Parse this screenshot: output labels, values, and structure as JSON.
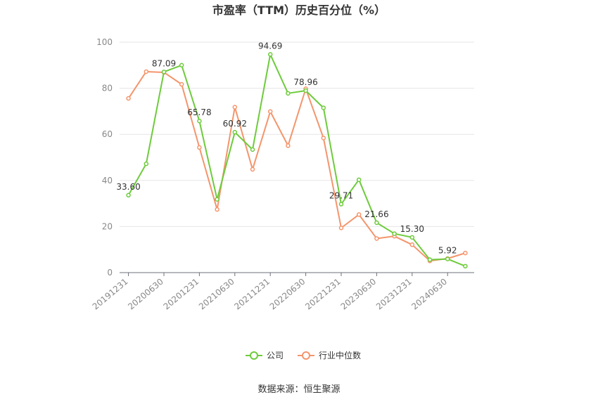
{
  "chart_data": {
    "type": "line",
    "title": "市盈率（TTM）历史百分位（%）",
    "ylim": [
      0,
      100
    ],
    "yticks": [
      0,
      20,
      40,
      60,
      80,
      100
    ],
    "x": [
      "20191231",
      "20200331",
      "20200630",
      "20200930",
      "20201231",
      "20210331",
      "20210630",
      "20210930",
      "20211231",
      "20220331",
      "20220630",
      "20220930",
      "20221231",
      "20230331",
      "20230630",
      "20230930",
      "20231231",
      "20240331",
      "20240630",
      "20240930"
    ],
    "xtick_labels": [
      "20191231",
      "20200630",
      "20201231",
      "20210630",
      "20211231",
      "20220630",
      "20221231",
      "20230630",
      "20231231",
      "20240630"
    ],
    "series": [
      {
        "name": "公司",
        "color": "#6ecb3c",
        "values": [
          33.6,
          47.2,
          87.09,
          90.0,
          65.78,
          31.8,
          60.92,
          53.4,
          94.69,
          77.8,
          78.96,
          71.5,
          29.71,
          40.3,
          21.66,
          16.9,
          15.3,
          5.6,
          5.92,
          2.8
        ],
        "labels": {
          "0": "33.60",
          "2": "87.09",
          "4": "65.78",
          "6": "60.92",
          "8": "94.69",
          "10": "78.96",
          "12": "29.71",
          "14": "21.66",
          "16": "15.30",
          "18": "5.92"
        }
      },
      {
        "name": "行业中位数",
        "color": "#f4956c",
        "values": [
          75.6,
          87.2,
          86.9,
          81.7,
          54.3,
          27.4,
          71.8,
          44.8,
          69.9,
          55.1,
          79.8,
          58.4,
          19.4,
          25.2,
          14.8,
          15.8,
          12.1,
          5.1,
          6.1,
          8.5
        ]
      }
    ],
    "grid": true,
    "legend": "bottom-center"
  },
  "source_text": "数据来源：恒生聚源"
}
